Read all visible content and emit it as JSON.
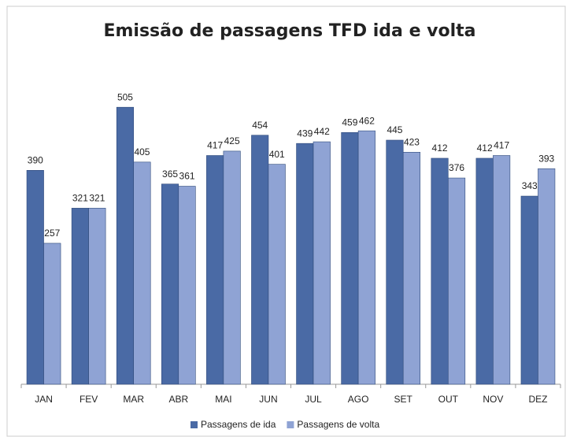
{
  "chart_data": {
    "type": "bar",
    "title": "Emissão de passagens TFD ida e volta",
    "categories": [
      "JAN",
      "FEV",
      "MAR",
      "ABR",
      "MAI",
      "JUN",
      "JUL",
      "AGO",
      "SET",
      "OUT",
      "NOV",
      "DEZ"
    ],
    "series": [
      {
        "name": "Passagens de ida",
        "color": "#4a6aa5",
        "values": [
          390,
          321,
          505,
          365,
          417,
          454,
          439,
          459,
          445,
          412,
          412,
          343
        ]
      },
      {
        "name": "Passagens de volta",
        "color": "#8fa3d4",
        "values": [
          257,
          321,
          405,
          361,
          425,
          401,
          442,
          462,
          423,
          376,
          417,
          393
        ]
      }
    ],
    "ylim": [
      0,
      600
    ],
    "legend": "bottom"
  }
}
